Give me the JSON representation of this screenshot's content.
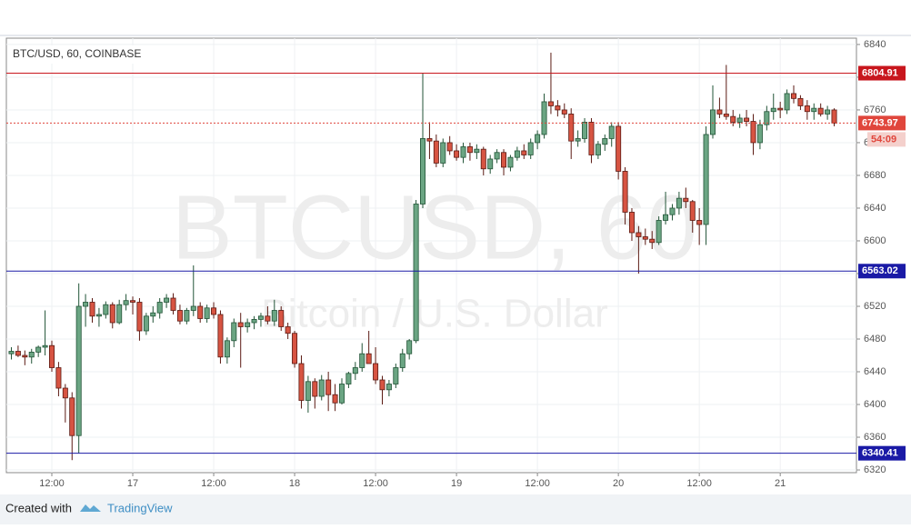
{
  "chart_data": {
    "type": "candlestick",
    "title": "BTC/USD, 60, COINBASE",
    "watermark": "BTCUSD, 60",
    "subtitle": "Bitcoin / U.S. Dollar",
    "open": [
      6462,
      6465,
      6460,
      6458,
      6464,
      6470,
      6472,
      6445,
      6420,
      6408,
      6362,
      6520,
      6525,
      6508,
      6510,
      6522,
      6500,
      6522,
      6527,
      6525,
      6490,
      6508,
      6512,
      6525,
      6530,
      6515,
      6502,
      6515,
      6520,
      6505,
      6518,
      6510,
      6458,
      6478,
      6500,
      6495,
      6500,
      6504,
      6508,
      6502,
      6515,
      6495,
      6487,
      6450,
      6405,
      6428,
      6410,
      6430,
      6412,
      6402,
      6425,
      6438,
      6445,
      6462,
      6450,
      6430,
      6418,
      6425,
      6445,
      6462,
      6478,
      6645,
      6725,
      6722,
      6695,
      6720,
      6710,
      6702,
      6715,
      6708,
      6712,
      6688,
      6700,
      6708,
      6690,
      6702,
      6710,
      6705,
      6720,
      6730,
      6770,
      6765,
      6760,
      6755,
      6722,
      6725,
      6745,
      6705,
      6718,
      6725,
      6740,
      6685,
      6635,
      6610,
      6605,
      6602,
      6598,
      6625,
      6632,
      6640,
      6652,
      6648,
      6625,
      6620,
      6730,
      6760,
      6755,
      6752,
      6745,
      6750,
      6746,
      6720,
      6742,
      6758,
      6762,
      6760,
      6780,
      6774,
      6765,
      6758,
      6762,
      6755,
      6760
    ],
    "high": [
      6470,
      6472,
      6466,
      6468,
      6472,
      6515,
      6478,
      6452,
      6425,
      6415,
      6548,
      6535,
      6530,
      6518,
      6526,
      6525,
      6528,
      6535,
      6532,
      6530,
      6512,
      6520,
      6530,
      6535,
      6536,
      6522,
      6518,
      6570,
      6525,
      6522,
      6525,
      6515,
      6482,
      6505,
      6512,
      6505,
      6508,
      6512,
      6520,
      6528,
      6520,
      6500,
      6490,
      6460,
      6435,
      6432,
      6436,
      6440,
      6425,
      6432,
      6440,
      6452,
      6475,
      6490,
      6470,
      6435,
      6430,
      6450,
      6468,
      6480,
      6650,
      6805,
      6745,
      6730,
      6725,
      6728,
      6718,
      6720,
      6720,
      6718,
      6715,
      6705,
      6712,
      6712,
      6705,
      6715,
      6718,
      6725,
      6735,
      6780,
      6830,
      6772,
      6768,
      6762,
      6735,
      6750,
      6750,
      6722,
      6730,
      6745,
      6745,
      6690,
      6640,
      6618,
      6615,
      6612,
      6630,
      6660,
      6645,
      6660,
      6665,
      6650,
      6640,
      6740,
      6790,
      6775,
      6815,
      6760,
      6755,
      6760,
      6755,
      6748,
      6765,
      6780,
      6770,
      6785,
      6790,
      6778,
      6772,
      6768,
      6768,
      6765,
      6762
    ],
    "low": [
      6455,
      6458,
      6448,
      6450,
      6458,
      6460,
      6440,
      6410,
      6378,
      6332,
      6340,
      6495,
      6500,
      6495,
      6505,
      6493,
      6498,
      6515,
      6510,
      6478,
      6485,
      6500,
      6505,
      6518,
      6510,
      6498,
      6498,
      6508,
      6500,
      6500,
      6505,
      6450,
      6450,
      6470,
      6445,
      6488,
      6492,
      6495,
      6498,
      6496,
      6490,
      6480,
      6445,
      6395,
      6390,
      6395,
      6405,
      6392,
      6392,
      6400,
      6420,
      6430,
      6440,
      6455,
      6425,
      6400,
      6410,
      6420,
      6440,
      6455,
      6475,
      6640,
      6700,
      6690,
      6690,
      6705,
      6698,
      6695,
      6698,
      6700,
      6680,
      6682,
      6695,
      6680,
      6685,
      6698,
      6700,
      6700,
      6712,
      6725,
      6755,
      6752,
      6750,
      6700,
      6715,
      6720,
      6695,
      6700,
      6710,
      6715,
      6675,
      6620,
      6600,
      6560,
      6595,
      6590,
      6595,
      6620,
      6625,
      6632,
      6640,
      6610,
      6595,
      6595,
      6725,
      6750,
      6748,
      6740,
      6738,
      6740,
      6705,
      6712,
      6735,
      6748,
      6750,
      6755,
      6768,
      6760,
      6748,
      6748,
      6752,
      6748,
      6740
    ],
    "close": [
      6465,
      6460,
      6458,
      6464,
      6470,
      6472,
      6445,
      6420,
      6408,
      6362,
      6520,
      6525,
      6508,
      6510,
      6522,
      6500,
      6522,
      6527,
      6525,
      6490,
      6508,
      6512,
      6525,
      6530,
      6515,
      6502,
      6515,
      6520,
      6505,
      6518,
      6510,
      6458,
      6478,
      6500,
      6495,
      6500,
      6504,
      6508,
      6502,
      6515,
      6495,
      6487,
      6450,
      6405,
      6428,
      6410,
      6430,
      6412,
      6402,
      6425,
      6438,
      6445,
      6462,
      6450,
      6430,
      6418,
      6425,
      6445,
      6462,
      6478,
      6645,
      6725,
      6722,
      6695,
      6720,
      6710,
      6702,
      6715,
      6708,
      6712,
      6688,
      6700,
      6708,
      6690,
      6702,
      6710,
      6705,
      6720,
      6730,
      6770,
      6765,
      6760,
      6755,
      6722,
      6725,
      6745,
      6705,
      6718,
      6725,
      6740,
      6685,
      6635,
      6610,
      6605,
      6602,
      6598,
      6625,
      6632,
      6640,
      6652,
      6648,
      6625,
      6620,
      6730,
      6760,
      6755,
      6752,
      6745,
      6750,
      6746,
      6720,
      6742,
      6758,
      6762,
      6760,
      6780,
      6774,
      6765,
      6758,
      6762,
      6755,
      6760,
      6743.97
    ],
    "up_color": "#6ba583",
    "down_color": "#d75442",
    "xlim": [
      -0.74,
      125.3
    ],
    "xticks": [
      {
        "value": 6,
        "label": "12:00"
      },
      {
        "value": 18,
        "label": "17"
      },
      {
        "value": 30,
        "label": "12:00"
      },
      {
        "value": 42,
        "label": "18"
      },
      {
        "value": 54,
        "label": "12:00"
      },
      {
        "value": 66,
        "label": "19"
      },
      {
        "value": 78,
        "label": "12:00"
      },
      {
        "value": 90,
        "label": "20"
      },
      {
        "value": 102,
        "label": "12:00"
      },
      {
        "value": 114,
        "label": "21"
      }
    ],
    "ylim": [
      6316.7,
      6847.7
    ],
    "yticks": [
      6320,
      6360,
      6400,
      6440,
      6480,
      6520,
      6560,
      6600,
      6640,
      6680,
      6720,
      6760,
      6800,
      6840
    ],
    "grid": true,
    "hlines": [
      {
        "value": 6804.91,
        "color": "#c8161d"
      },
      {
        "value": 6563.02,
        "color": "#1a1aa6"
      },
      {
        "value": 6340.41,
        "color": "#1a1aa6"
      }
    ],
    "price_line": {
      "value": 6743.97,
      "color": "#e0463c",
      "countdown": "54:09"
    },
    "footer": {
      "text": "Created with",
      "brand": "TradingView"
    }
  }
}
